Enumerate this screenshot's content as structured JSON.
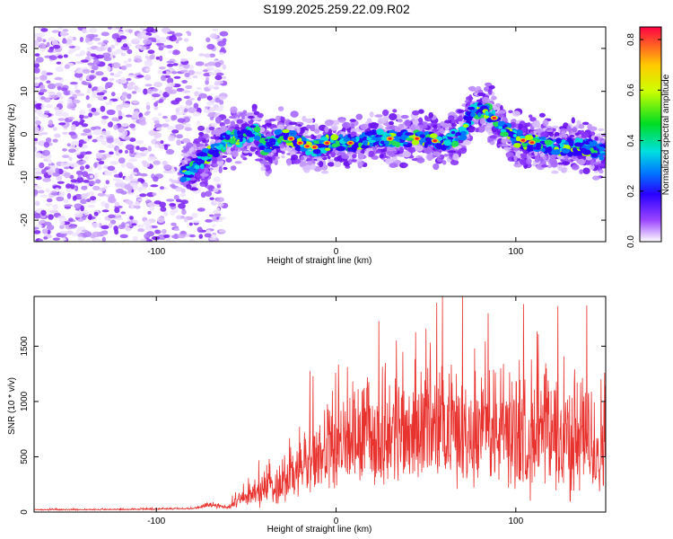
{
  "title": "S199.2025.259.22.09.R02",
  "chart_data": [
    {
      "type": "heatmap",
      "name": "spectrogram",
      "xlabel": "Height of straight line (km)",
      "ylabel": "Frequency (Hz)",
      "xlim": [
        -168,
        150
      ],
      "ylim": [
        -25,
        25
      ],
      "xticks": [
        -100,
        0,
        100
      ],
      "yticks": [
        -20,
        -10,
        0,
        10,
        20
      ],
      "ridge": {
        "x": [
          -83,
          -75,
          -68,
          -60,
          -52,
          -45,
          -40,
          -35,
          -30,
          -25,
          -20,
          -15,
          -10,
          -5,
          0,
          10,
          20,
          30,
          40,
          50,
          60,
          65,
          70,
          73,
          76,
          80,
          85,
          90,
          95,
          100,
          110,
          120,
          130,
          140,
          148
        ],
        "y": [
          -9,
          -6,
          -4,
          -1,
          -1,
          1,
          -3,
          -2,
          0,
          -1,
          -2,
          -3,
          -3,
          -2,
          -2,
          -2,
          -1,
          -1,
          -1,
          -1,
          -2,
          -1,
          0,
          3,
          5,
          6,
          5,
          3,
          1,
          -1,
          -2,
          -3,
          -3,
          -3,
          -4
        ]
      },
      "colorbar": {
        "label": "Normalized spectral amplitude",
        "min": 0.0,
        "max": 0.85,
        "ticks": [
          "0.0",
          "0.2",
          "0.4",
          "0.6",
          "0.8"
        ],
        "tick_values": [
          0.0,
          0.2,
          0.4,
          0.6,
          0.8
        ]
      }
    },
    {
      "type": "line",
      "name": "snr",
      "xlabel": "Height of straight line (km)",
      "ylabel": "SNR (10 * v/v)",
      "xlim": [
        -168,
        150
      ],
      "ylim": [
        0,
        1950
      ],
      "xticks": [
        -100,
        0,
        100
      ],
      "yticks": [
        0,
        500,
        1000,
        1500
      ],
      "color": "#e8322e",
      "envelope": {
        "x": [
          -168,
          -120,
          -80,
          -70,
          -60,
          -50,
          -40,
          -30,
          -20,
          -10,
          0,
          10,
          20,
          30,
          40,
          50,
          60,
          70,
          80,
          90,
          100,
          110,
          120,
          130,
          140,
          150
        ],
        "base": [
          20,
          22,
          30,
          60,
          40,
          120,
          180,
          230,
          320,
          420,
          480,
          540,
          560,
          600,
          620,
          640,
          640,
          630,
          620,
          600,
          580,
          560,
          540,
          520,
          500,
          480
        ],
        "amp": [
          10,
          10,
          15,
          40,
          30,
          150,
          300,
          400,
          500,
          600,
          650,
          700,
          800,
          850,
          850,
          850,
          850,
          850,
          850,
          900,
          900,
          950,
          1000,
          950,
          900,
          900
        ]
      }
    }
  ]
}
